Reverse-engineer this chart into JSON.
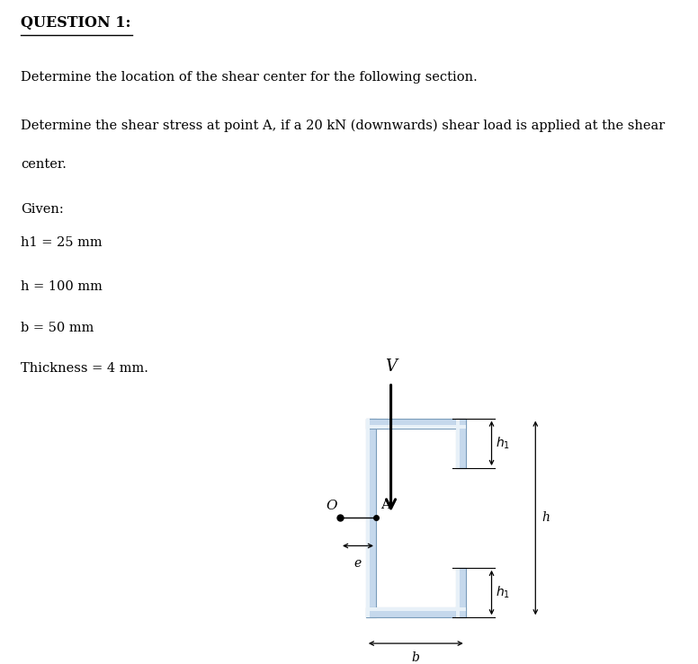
{
  "title": "QUESTION 1:",
  "line1": "Determine the location of the shear center for the following section.",
  "line2": "Determine the shear stress at point A, if a 20 kN (downwards) shear load is applied at the shear",
  "line2b": "center.",
  "given_label": "Given:",
  "h1_label": "h1 = 25 mm",
  "h_label": "h = 100 mm",
  "b_label": "b = 50 mm",
  "t_label": "Thickness = 4 mm.",
  "section_color_light": "#c5d8ec",
  "section_color_mid": "#a8c4dc",
  "section_edge_color": "#7a9cba",
  "bg_color": "#ffffff",
  "text_color": "#000000"
}
